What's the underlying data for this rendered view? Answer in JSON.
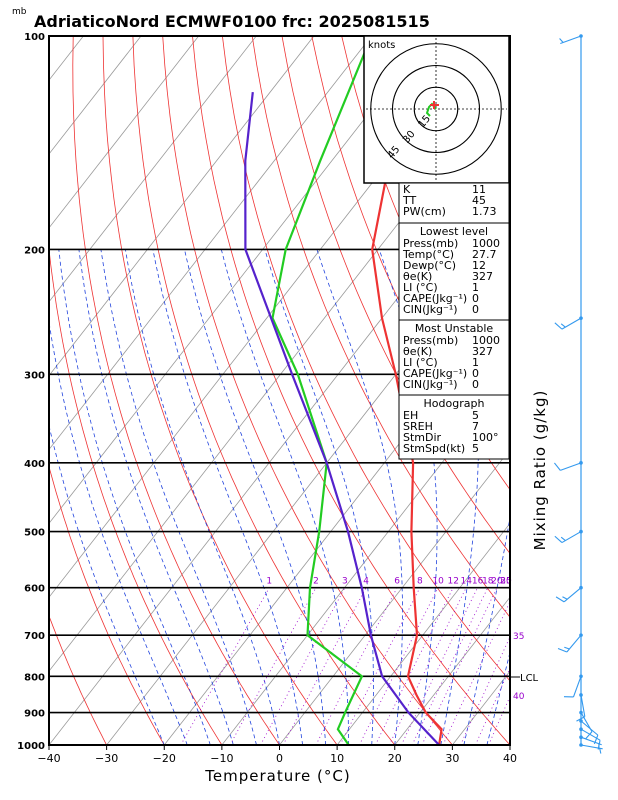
{
  "title": "AdriaticoNord ECMWF0100  frc: 2025081515",
  "pressure_unit": "mb",
  "colors": {
    "temperature": "#ee3333",
    "dewpoint": "#22cc22",
    "parcel": "#5522cc",
    "isotherm": "#999999",
    "dry_adiabat": "#ee3333",
    "moist_adiabat": "#2244dd",
    "mixing_ratio": "#9900cc",
    "wind_barb": "#3399ee"
  },
  "chart_data": {
    "type": "line",
    "subtype": "skew-T log-P",
    "xlabel": "Temperature (°C)",
    "ylabel_right": "Mixing Ratio (g/kg)",
    "xlim": [
      -40,
      40
    ],
    "plim": [
      1000,
      100
    ],
    "x_ticks": [
      "−40",
      "−30",
      "−20",
      "−10",
      "0",
      "10",
      "20",
      "30",
      "40"
    ],
    "p_ticks": [
      "100",
      "200",
      "300",
      "400",
      "500",
      "600",
      "700",
      "800",
      "900",
      "1000"
    ],
    "mixing_ratio_labels": [
      "1",
      "2",
      "3",
      "4",
      "6",
      "8",
      "10",
      "12",
      "14",
      "16",
      "18",
      "20",
      "25",
      "30",
      "35",
      "40"
    ],
    "lcl_label": "LCL",
    "lcl_pressure": 800,
    "series": [
      {
        "key": "temperature",
        "points": [
          [
            1000,
            27.7
          ],
          [
            950,
            26
          ],
          [
            900,
            21
          ],
          [
            850,
            17
          ],
          [
            800,
            13
          ],
          [
            700,
            9
          ],
          [
            600,
            2
          ],
          [
            500,
            -6
          ],
          [
            400,
            -15
          ],
          [
            300,
            -30
          ],
          [
            250,
            -40
          ],
          [
            200,
            -51
          ],
          [
            150,
            -60
          ],
          [
            100,
            -68
          ]
        ]
      },
      {
        "key": "dewpoint",
        "points": [
          [
            1000,
            12
          ],
          [
            950,
            8
          ],
          [
            900,
            7
          ],
          [
            800,
            5
          ],
          [
            700,
            -10
          ],
          [
            600,
            -16
          ],
          [
            500,
            -22
          ],
          [
            400,
            -30
          ],
          [
            300,
            -47
          ],
          [
            250,
            -59
          ],
          [
            200,
            -66
          ],
          [
            150,
            -72
          ],
          [
            100,
            -80
          ]
        ]
      },
      {
        "key": "parcel",
        "points": [
          [
            1000,
            27.7
          ],
          [
            900,
            18
          ],
          [
            800,
            8.5
          ],
          [
            700,
            1
          ],
          [
            600,
            -7
          ],
          [
            500,
            -17
          ],
          [
            400,
            -30
          ],
          [
            300,
            -48
          ],
          [
            200,
            -73
          ],
          [
            150,
            -85
          ],
          [
            120,
            -93
          ]
        ]
      }
    ],
    "wind_barbs": [
      {
        "p": 1000,
        "speed": 5,
        "dir": 100
      },
      {
        "p": 975,
        "speed": 5,
        "dir": 110
      },
      {
        "p": 950,
        "speed": 10,
        "dir": 120
      },
      {
        "p": 925,
        "speed": 10,
        "dir": 130
      },
      {
        "p": 900,
        "speed": 10,
        "dir": 150
      },
      {
        "p": 850,
        "speed": 10,
        "dir": 170
      },
      {
        "p": 800,
        "speed": 10,
        "dir": 200
      },
      {
        "p": 700,
        "speed": 15,
        "dir": 220
      },
      {
        "p": 600,
        "speed": 15,
        "dir": 230
      },
      {
        "p": 500,
        "speed": 15,
        "dir": 240
      },
      {
        "p": 400,
        "speed": 10,
        "dir": 250
      },
      {
        "p": 250,
        "speed": 15,
        "dir": 240
      },
      {
        "p": 100,
        "speed": 5,
        "dir": 250
      }
    ]
  },
  "hodograph": {
    "unit": "knots",
    "ring_labels": [
      "15",
      "30",
      "45"
    ]
  },
  "indices": {
    "rows": [
      {
        "label": "K",
        "value": "11"
      },
      {
        "label": "TT",
        "value": "45"
      },
      {
        "label": "PW(cm)",
        "value": "1.73"
      }
    ]
  },
  "lowest_level": {
    "header": "Lowest level",
    "rows": [
      {
        "label": "Press(mb)",
        "value": "1000"
      },
      {
        "label": "Temp(°C)",
        "value": "27.7"
      },
      {
        "label": "Dewp(°C)",
        "value": "12"
      },
      {
        "label": "θe(K)",
        "value": "327"
      },
      {
        "label": "LI (°C)",
        "value": "1"
      },
      {
        "label": "CAPE(Jkg⁻¹)",
        "value": "0"
      },
      {
        "label": "CIN(Jkg⁻¹)",
        "value": "0"
      }
    ]
  },
  "most_unstable": {
    "header": "Most Unstable",
    "rows": [
      {
        "label": "Press(mb)",
        "value": "1000"
      },
      {
        "label": "θe(K)",
        "value": "327"
      },
      {
        "label": "LI (°C)",
        "value": "1"
      },
      {
        "label": "CAPE(Jkg⁻¹)",
        "value": "0"
      },
      {
        "label": "CIN(Jkg⁻¹)",
        "value": "0"
      }
    ]
  },
  "hodograph_box": {
    "header": "Hodograph",
    "rows": [
      {
        "label": "EH",
        "value": "5"
      },
      {
        "label": "SREH",
        "value": "7"
      },
      {
        "label": "StmDir",
        "value": "100°"
      },
      {
        "label": "StmSpd(kt)",
        "value": "5"
      }
    ]
  }
}
